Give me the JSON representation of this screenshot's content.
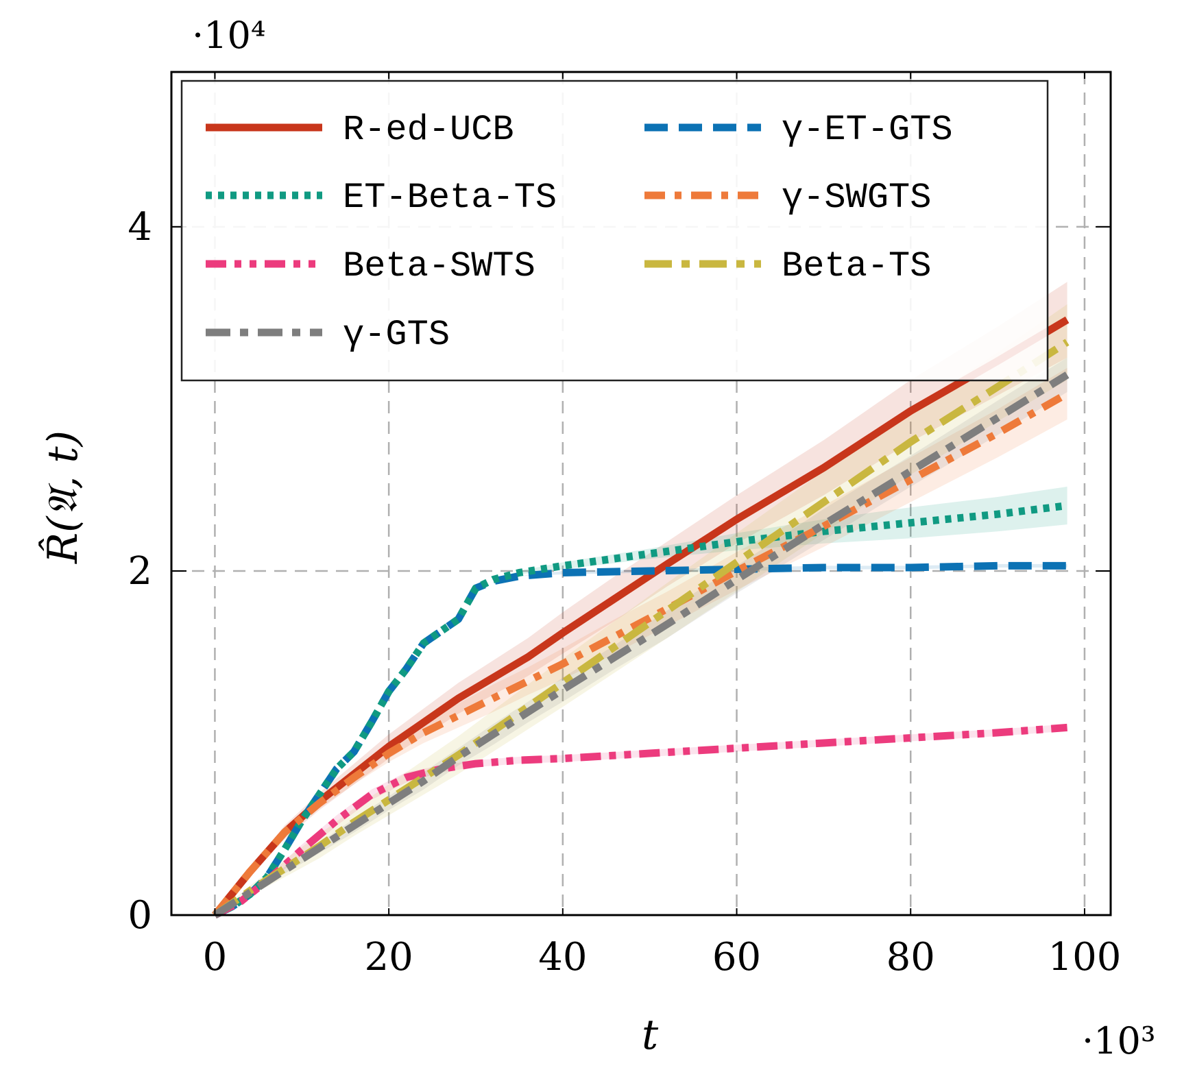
{
  "chart_data": {
    "type": "line",
    "title": "",
    "xlabel": "t",
    "ylabel": "R̂(𝔄, t)",
    "x_multiplier": "·10³",
    "y_multiplier": "·10⁴",
    "xlim": [
      -5,
      103
    ],
    "ylim": [
      0,
      4.9
    ],
    "x_ticks": [
      0,
      20,
      40,
      60,
      80,
      100
    ],
    "x_tick_labels": [
      "0",
      "20",
      "40",
      "60",
      "80",
      "100"
    ],
    "y_ticks": [
      0,
      2,
      4
    ],
    "y_tick_labels": [
      "0",
      "2",
      "4"
    ],
    "grid": true,
    "legend_position": "top-left",
    "series": [
      {
        "name": "R-ed-UCB",
        "color": "#c8361b",
        "style": "solid",
        "x": [
          0,
          4,
          8,
          12,
          16,
          20,
          24,
          28,
          32,
          36,
          40,
          46,
          52,
          60,
          70,
          80,
          90,
          98
        ],
        "y": [
          0,
          0.25,
          0.48,
          0.66,
          0.82,
          0.98,
          1.12,
          1.26,
          1.38,
          1.5,
          1.64,
          1.84,
          2.04,
          2.3,
          2.6,
          2.93,
          3.22,
          3.46
        ],
        "band": [
          0,
          0.02,
          0.04,
          0.05,
          0.06,
          0.07,
          0.08,
          0.09,
          0.1,
          0.11,
          0.12,
          0.13,
          0.13,
          0.14,
          0.16,
          0.18,
          0.2,
          0.22
        ]
      },
      {
        "name": "γ-ET-GTS",
        "color": "#0c72b4",
        "style": "dashed",
        "x": [
          0,
          2,
          4,
          6,
          8,
          10,
          12,
          14,
          16,
          18,
          20,
          22,
          24,
          26,
          28,
          30,
          32,
          35,
          40,
          50,
          60,
          70,
          80,
          90,
          98
        ],
        "y": [
          0,
          0.05,
          0.12,
          0.22,
          0.38,
          0.55,
          0.7,
          0.85,
          0.95,
          1.12,
          1.3,
          1.43,
          1.58,
          1.65,
          1.72,
          1.9,
          1.94,
          1.97,
          1.99,
          2.0,
          2.01,
          2.02,
          2.02,
          2.03,
          2.03
        ],
        "band": [
          0,
          0,
          0,
          0,
          0,
          0,
          0,
          0,
          0,
          0,
          0,
          0,
          0,
          0,
          0,
          0,
          0,
          0,
          0.01,
          0.01,
          0.01,
          0.01,
          0.01,
          0.01,
          0.01
        ]
      },
      {
        "name": "ET-Beta-TS",
        "color": "#109a82",
        "style": "dotted",
        "x": [
          0,
          2,
          4,
          6,
          8,
          10,
          12,
          14,
          16,
          18,
          20,
          22,
          24,
          26,
          28,
          30,
          32,
          35,
          40,
          50,
          60,
          70,
          80,
          90,
          98
        ],
        "y": [
          0,
          0.05,
          0.12,
          0.22,
          0.38,
          0.55,
          0.7,
          0.85,
          0.95,
          1.12,
          1.3,
          1.43,
          1.58,
          1.65,
          1.72,
          1.9,
          1.95,
          1.99,
          2.03,
          2.1,
          2.17,
          2.23,
          2.28,
          2.33,
          2.38
        ],
        "band": [
          0,
          0,
          0,
          0,
          0,
          0,
          0,
          0,
          0,
          0,
          0,
          0,
          0,
          0,
          0,
          0,
          0,
          0.01,
          0.02,
          0.03,
          0.05,
          0.07,
          0.09,
          0.1,
          0.11
        ]
      },
      {
        "name": "γ-SWGTS",
        "color": "#ee7a3a",
        "style": "dashdot",
        "x": [
          0,
          4,
          8,
          12,
          16,
          20,
          24,
          28,
          32,
          36,
          40,
          46,
          52,
          60,
          70,
          80,
          90,
          98
        ],
        "y": [
          0,
          0.25,
          0.48,
          0.65,
          0.8,
          0.94,
          1.06,
          1.16,
          1.26,
          1.36,
          1.46,
          1.62,
          1.78,
          2.0,
          2.26,
          2.53,
          2.8,
          3.03
        ],
        "band": [
          0,
          0.01,
          0.02,
          0.03,
          0.04,
          0.05,
          0.06,
          0.07,
          0.08,
          0.08,
          0.09,
          0.1,
          0.1,
          0.11,
          0.12,
          0.13,
          0.14,
          0.15
        ]
      },
      {
        "name": "Beta-SWTS",
        "color": "#ec3b7d",
        "style": "dashdotdot",
        "x": [
          0,
          3,
          6,
          10,
          14,
          18,
          22,
          26,
          30,
          35,
          40,
          50,
          60,
          70,
          80,
          90,
          98
        ],
        "y": [
          0,
          0.08,
          0.2,
          0.38,
          0.55,
          0.7,
          0.8,
          0.85,
          0.88,
          0.9,
          0.91,
          0.94,
          0.97,
          1.0,
          1.03,
          1.06,
          1.09
        ],
        "band": [
          0,
          0.01,
          0.02,
          0.03,
          0.03,
          0.03,
          0.03,
          0.02,
          0.02,
          0.02,
          0.02,
          0.02,
          0.02,
          0.02,
          0.02,
          0.02,
          0.02
        ]
      },
      {
        "name": "Beta-TS",
        "color": "#c9b740",
        "style": "longdashdot",
        "x": [
          0,
          4,
          8,
          12,
          16,
          20,
          24,
          28,
          32,
          36,
          40,
          46,
          52,
          60,
          70,
          80,
          90,
          98
        ],
        "y": [
          0,
          0.14,
          0.27,
          0.4,
          0.54,
          0.67,
          0.8,
          0.93,
          1.07,
          1.21,
          1.35,
          1.56,
          1.77,
          2.05,
          2.4,
          2.75,
          3.07,
          3.33
        ],
        "band": [
          0,
          0.03,
          0.05,
          0.07,
          0.08,
          0.09,
          0.1,
          0.11,
          0.12,
          0.13,
          0.14,
          0.15,
          0.16,
          0.17,
          0.18,
          0.19,
          0.2,
          0.22
        ]
      },
      {
        "name": "γ-GTS",
        "color": "#7e7e7e",
        "style": "longdashdotgray",
        "x": [
          0,
          4,
          8,
          12,
          16,
          20,
          24,
          28,
          32,
          36,
          40,
          46,
          52,
          60,
          70,
          80,
          90,
          98
        ],
        "y": [
          0,
          0.13,
          0.26,
          0.39,
          0.52,
          0.65,
          0.78,
          0.92,
          1.05,
          1.18,
          1.31,
          1.5,
          1.69,
          1.95,
          2.27,
          2.58,
          2.89,
          3.14
        ],
        "band": [
          0,
          0.01,
          0.02,
          0.03,
          0.04,
          0.04,
          0.05,
          0.05,
          0.06,
          0.06,
          0.07,
          0.07,
          0.08,
          0.08,
          0.09,
          0.09,
          0.1,
          0.1
        ]
      }
    ]
  },
  "legend": {
    "columns": [
      [
        "R-ed-UCB",
        "ET-Beta-TS",
        "Beta-SWTS",
        "γ-GTS"
      ],
      [
        "γ-ET-GTS",
        "γ-SWGTS",
        "Beta-TS"
      ]
    ]
  }
}
